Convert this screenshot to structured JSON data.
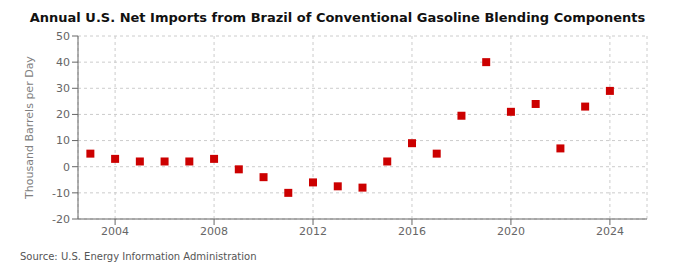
{
  "chart_data": {
    "type": "scatter",
    "title": "Annual U.S. Net Imports from Brazil of Conventional Gasoline Blending Components",
    "ylabel": "Thousand Barrels per Day",
    "annotations": [
      "Source: U.S. Energy Information Administration"
    ],
    "x": [
      2003,
      2004,
      2005,
      2006,
      2007,
      2008,
      2009,
      2010,
      2011,
      2012,
      2013,
      2014,
      2015,
      2016,
      2017,
      2018,
      2019,
      2020,
      2021,
      2022,
      2023,
      2024
    ],
    "values": [
      5.0,
      3.0,
      2.0,
      2.0,
      2.0,
      3.0,
      -1.0,
      -4.0,
      -10.0,
      -6.0,
      -7.5,
      -8.0,
      2.0,
      9.0,
      5.0,
      19.5,
      40.0,
      21.0,
      24.0,
      7.0,
      23.0,
      29.0
    ],
    "color": "#cc0000",
    "marker": "square",
    "xlim": [
      2002.5,
      2025.5
    ],
    "ylim": [
      -20,
      50
    ],
    "xticks": [
      2004,
      2008,
      2012,
      2016,
      2020,
      2024
    ],
    "yticks": [
      -20,
      -10,
      0,
      10,
      20,
      30,
      40,
      50
    ],
    "grid": true
  }
}
